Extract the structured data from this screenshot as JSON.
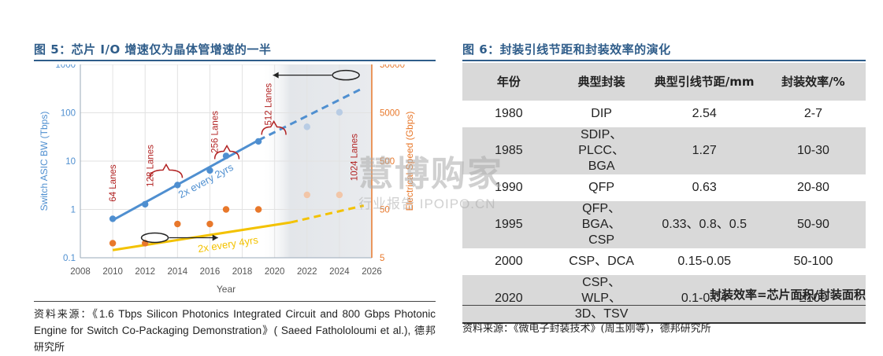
{
  "figure5": {
    "title": "图 5：芯片 I/O 增速仅为晶体管增速的一半",
    "source_prefix": "资料来源：",
    "source_body": "《1.6 Tbps Silicon Photonics Integrated Circuit and 800 Gbps Photonic Engine for Switch Co-Packaging Demonstration》( Saeed Fathololoumi et al.),",
    "source_suffix": "德邦研究所"
  },
  "figure6": {
    "title": "图 6：封装引线节距和封装效率的演化",
    "source": "资料来源：《微电子封装技术》(周玉刚等)，德邦研究所",
    "formula": "封装效率=芯片面积/封装面积",
    "headers": [
      "年份",
      "典型封装",
      "典型引线节距/mm",
      "封装效率/%"
    ],
    "rows": [
      {
        "year": "1980",
        "package": "DIP",
        "pitch": "2.54",
        "efficiency": "2-7"
      },
      {
        "year": "1985",
        "package": "SDIP、PLCC、BGA",
        "pitch": "1.27",
        "efficiency": "10-30"
      },
      {
        "year": "1990",
        "package": "QFP",
        "pitch": "0.63",
        "efficiency": "20-80"
      },
      {
        "year": "1995",
        "package": "QFP、BGA、CSP",
        "pitch": "0.33、0.8、0.5",
        "efficiency": "50-90"
      },
      {
        "year": "2000",
        "package": "CSP、DCA",
        "pitch": "0.15-0.05",
        "efficiency": "50-100"
      },
      {
        "year": "2020",
        "package": "CSP、WLP、3D、TSV",
        "pitch": "0.1-0.04",
        "efficiency": "≥100"
      }
    ]
  },
  "watermark": {
    "line1": "慧博购家",
    "line2": "行业报告 IPOIPO.CN"
  },
  "chart_data": {
    "type": "scatter",
    "xlabel": "Year",
    "ylabel": "Switch ASIC BW (Tbps)",
    "y2label": "Electrical Speed (Gbps)",
    "xlim": [
      2008,
      2026
    ],
    "xticks": [
      2008,
      2010,
      2012,
      2014,
      2016,
      2018,
      2020,
      2022,
      2024,
      2026
    ],
    "ylim": [
      0.1,
      1000
    ],
    "yscale": "log",
    "yticks": [
      {
        "v": 0.1,
        "label": "0.1"
      },
      {
        "v": 1,
        "label": "1"
      },
      {
        "v": 10,
        "label": "10"
      },
      {
        "v": 100,
        "label": "100"
      },
      {
        "v": 1000,
        "label": "1000"
      }
    ],
    "y2lim": [
      5,
      50000
    ],
    "y2ticks": [
      {
        "v": 5,
        "label": "5"
      },
      {
        "v": 50,
        "label": "50"
      },
      {
        "v": 500,
        "label": "500"
      },
      {
        "v": 5000,
        "label": "5000"
      },
      {
        "v": 50000,
        "label": "50000"
      }
    ],
    "grid": true,
    "colors": {
      "bw": "#4f8fd0",
      "speed": "#e8782b",
      "trend_bw": "#4f8fd0",
      "trend_speed": "#f3c200",
      "lanes": "#b22222",
      "future": "#b8cce4",
      "future_speed": "#f2c6a8"
    },
    "series": [
      {
        "key": "bw",
        "axis": "left",
        "points": [
          [
            2010,
            0.64
          ],
          [
            2012,
            1.28
          ],
          [
            2014,
            3.2
          ],
          [
            2016,
            6.4
          ],
          [
            2017,
            12.8
          ],
          [
            2019,
            25.6
          ]
        ],
        "projected": [
          [
            2022,
            51.2
          ],
          [
            2024,
            102.4
          ]
        ]
      },
      {
        "key": "speed",
        "axis": "right",
        "points": [
          [
            2010,
            10
          ],
          [
            2012,
            10
          ],
          [
            2014,
            25
          ],
          [
            2016,
            25
          ],
          [
            2017,
            50
          ],
          [
            2019,
            50
          ]
        ],
        "projected": [
          [
            2022,
            100
          ],
          [
            2024,
            100
          ]
        ]
      }
    ],
    "trendlines": [
      {
        "key": "trend_bw",
        "axis": "left",
        "from": [
          2010,
          0.6
        ],
        "to": [
          2019,
          27
        ],
        "dashed_to": [
          2025.5,
          330
        ],
        "label": "2x every 2yrs"
      },
      {
        "key": "trend_speed",
        "axis": "right",
        "from": [
          2010,
          7.2
        ],
        "to": [
          2021,
          27
        ],
        "dashed_to": [
          2025.5,
          60
        ],
        "label": "2x every 4yrs"
      }
    ],
    "lane_labels": [
      {
        "text": "64 Lanes",
        "x": 2010,
        "y": 3.5
      },
      {
        "text": "128 Lanes",
        "x": 2012.3,
        "y": 8
      },
      {
        "text": "256 Lanes",
        "x": 2016.3,
        "y": 40
      },
      {
        "text": "512 Lanes",
        "x": 2019.6,
        "y": 150
      },
      {
        "text": "1024 Lanes",
        "x": 2024.9,
        "y": 12
      }
    ]
  }
}
